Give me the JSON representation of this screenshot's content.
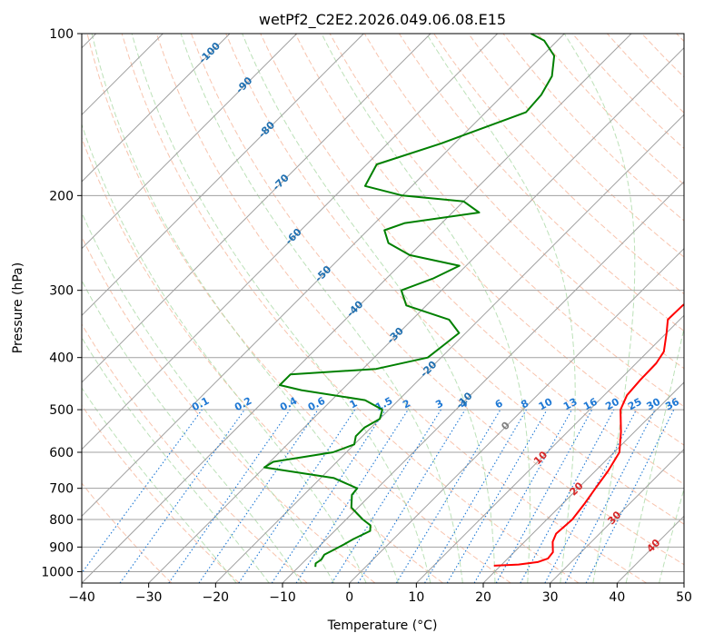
{
  "chart_data": {
    "type": "line",
    "title": "wetPf2_C2E2.2026.049.06.08.E15",
    "xlabel": "Temperature (°C)",
    "ylabel": "Pressure (hPa)",
    "xlim": [
      -40,
      50
    ],
    "ylim": [
      1050,
      100
    ],
    "y_scale": "log",
    "grid": true,
    "x_ticks": [
      "−40",
      "−30",
      "−20",
      "−10",
      "0",
      "10",
      "20",
      "30",
      "40",
      "50"
    ],
    "y_ticks": [
      {
        "value": 100,
        "label": "100"
      },
      {
        "value": 200,
        "label": "200"
      },
      {
        "value": 300,
        "label": "300"
      },
      {
        "value": 400,
        "label": "400"
      },
      {
        "value": 500,
        "label": "500"
      },
      {
        "value": 600,
        "label": "600"
      },
      {
        "value": 700,
        "label": "700"
      },
      {
        "value": 800,
        "label": "800"
      },
      {
        "value": 900,
        "label": "900"
      },
      {
        "value": 1000,
        "label": "1000"
      }
    ],
    "isotherm_labels": [
      "-100",
      "-90",
      "-80",
      "-70",
      "-60",
      "-50",
      "-40",
      "-30",
      "-20",
      "-10",
      "0",
      "10",
      "20",
      "30",
      "40"
    ],
    "mixing_ratio_labels": [
      "0.1",
      "0.2",
      "0.4",
      "0.6",
      "1",
      "1.5",
      "2",
      "3",
      "4",
      "6",
      "8",
      "10",
      "13",
      "16",
      "20",
      "25",
      "30",
      "36"
    ],
    "colors": {
      "temperature": "#ff0000",
      "dewpoint": "#008000",
      "isotherm_grid": "#a0a0a0",
      "dry_adiabat": "#f4a582",
      "moist_adiabat": "#a6d7a0",
      "mixing_ratio": "#1e78d4",
      "isotherm_label_cold": "#1f6fb0",
      "isotherm_label_warm": "#d62728",
      "isotherm_label_zero": "#808080"
    },
    "series": [
      {
        "name": "",
        "key": "temperature",
        "values": [
          {
            "p": 975,
            "t": 19.0
          },
          {
            "p": 970,
            "t": 22.5
          },
          {
            "p": 960,
            "t": 25.0
          },
          {
            "p": 945,
            "t": 26.0
          },
          {
            "p": 920,
            "t": 25.8
          },
          {
            "p": 880,
            "t": 24.2
          },
          {
            "p": 850,
            "t": 23.5
          },
          {
            "p": 800,
            "t": 23.8
          },
          {
            "p": 750,
            "t": 23.3
          },
          {
            "p": 700,
            "t": 22.6
          },
          {
            "p": 650,
            "t": 21.9
          },
          {
            "p": 600,
            "t": 20.8
          },
          {
            "p": 550,
            "t": 18.0
          },
          {
            "p": 500,
            "t": 14.6
          },
          {
            "p": 470,
            "t": 13.4
          },
          {
            "p": 440,
            "t": 13.1
          },
          {
            "p": 410,
            "t": 13.0
          },
          {
            "p": 390,
            "t": 12.4
          },
          {
            "p": 360,
            "t": 10.0
          },
          {
            "p": 340,
            "t": 8.2
          },
          {
            "p": 320,
            "t": 8.3
          },
          {
            "p": 300,
            "t": 9.2
          },
          {
            "p": 280,
            "t": 10.5
          },
          {
            "p": 260,
            "t": 10.8
          },
          {
            "p": 240,
            "t": 9.5
          },
          {
            "p": 220,
            "t": 7.5
          },
          {
            "p": 200,
            "t": 5.7
          },
          {
            "p": 180,
            "t": 5.7
          },
          {
            "p": 160,
            "t": 4.0
          },
          {
            "p": 140,
            "t": 1.5
          },
          {
            "p": 130,
            "t": 1.0
          },
          {
            "p": 125,
            "t": 1.4
          },
          {
            "p": 120,
            "t": 3.0
          },
          {
            "p": 115,
            "t": 4.2
          },
          {
            "p": 110,
            "t": 4.2
          },
          {
            "p": 105,
            "t": 3.8
          },
          {
            "p": 100,
            "t": 3.5
          }
        ]
      },
      {
        "name": "",
        "key": "dewpoint",
        "values": [
          {
            "p": 980,
            "t": -7.5
          },
          {
            "p": 965,
            "t": -8.0
          },
          {
            "p": 950,
            "t": -7.7
          },
          {
            "p": 930,
            "t": -8.0
          },
          {
            "p": 910,
            "t": -7.3
          },
          {
            "p": 890,
            "t": -6.6
          },
          {
            "p": 870,
            "t": -6.0
          },
          {
            "p": 840,
            "t": -4.7
          },
          {
            "p": 820,
            "t": -5.5
          },
          {
            "p": 800,
            "t": -7.5
          },
          {
            "p": 760,
            "t": -11.0
          },
          {
            "p": 720,
            "t": -12.8
          },
          {
            "p": 700,
            "t": -13.0
          },
          {
            "p": 670,
            "t": -18.0
          },
          {
            "p": 640,
            "t": -30.0
          },
          {
            "p": 625,
            "t": -29.5
          },
          {
            "p": 600,
            "t": -22.0
          },
          {
            "p": 580,
            "t": -20.0
          },
          {
            "p": 560,
            "t": -21.0
          },
          {
            "p": 540,
            "t": -21.0
          },
          {
            "p": 520,
            "t": -20.0
          },
          {
            "p": 500,
            "t": -21.0
          },
          {
            "p": 480,
            "t": -25.0
          },
          {
            "p": 460,
            "t": -36.0
          },
          {
            "p": 450,
            "t": -40.0
          },
          {
            "p": 430,
            "t": -40.0
          },
          {
            "p": 420,
            "t": -28.0
          },
          {
            "p": 400,
            "t": -22.0
          },
          {
            "p": 380,
            "t": -21.5
          },
          {
            "p": 360,
            "t": -21.0
          },
          {
            "p": 340,
            "t": -24.5
          },
          {
            "p": 320,
            "t": -33.0
          },
          {
            "p": 300,
            "t": -36.0
          },
          {
            "p": 285,
            "t": -33.0
          },
          {
            "p": 270,
            "t": -31.0
          },
          {
            "p": 258,
            "t": -40.0
          },
          {
            "p": 245,
            "t": -45.0
          },
          {
            "p": 232,
            "t": -47.5
          },
          {
            "p": 225,
            "t": -45.5
          },
          {
            "p": 215,
            "t": -36.0
          },
          {
            "p": 205,
            "t": -40.0
          },
          {
            "p": 200,
            "t": -50.0
          },
          {
            "p": 192,
            "t": -57.0
          },
          {
            "p": 175,
            "t": -58.5
          },
          {
            "p": 160,
            "t": -52.0
          },
          {
            "p": 140,
            "t": -44.0
          },
          {
            "p": 130,
            "t": -44.3
          },
          {
            "p": 120,
            "t": -45.5
          },
          {
            "p": 110,
            "t": -48.2
          },
          {
            "p": 103,
            "t": -52.0
          },
          {
            "p": 100,
            "t": -55.0
          }
        ]
      }
    ]
  }
}
